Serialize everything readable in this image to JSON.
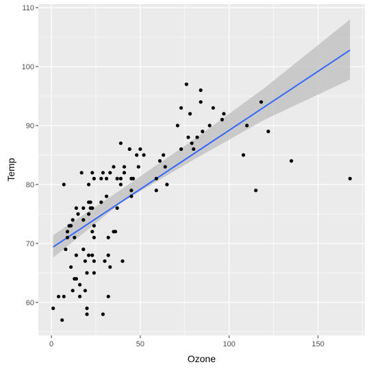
{
  "chart_data": {
    "type": "scatter",
    "title": "",
    "xlabel": "Ozone",
    "ylabel": "Temp",
    "xlim": [
      -7.35,
      176.35
    ],
    "ylim": [
      54.4,
      110.6
    ],
    "xticks": [
      0,
      50,
      100,
      150
    ],
    "yticks": [
      60,
      70,
      80,
      90,
      100,
      110
    ],
    "grid": true,
    "legend": "none",
    "colors": {
      "panel": "#ebebeb",
      "grid": "#ffffff",
      "points": "#000000",
      "fit_line": "#3366ff",
      "ribbon": "#bebebe"
    },
    "points": [
      [
        1,
        59
      ],
      [
        4,
        61
      ],
      [
        6,
        57
      ],
      [
        7,
        61
      ],
      [
        7,
        80
      ],
      [
        8,
        69
      ],
      [
        9,
        71
      ],
      [
        9,
        72
      ],
      [
        10,
        73
      ],
      [
        11,
        73
      ],
      [
        11,
        66
      ],
      [
        12,
        74
      ],
      [
        12,
        62
      ],
      [
        13,
        71
      ],
      [
        13,
        64
      ],
      [
        14,
        76
      ],
      [
        14,
        64
      ],
      [
        14,
        68
      ],
      [
        15,
        75
      ],
      [
        16,
        61
      ],
      [
        16,
        63
      ],
      [
        17,
        82
      ],
      [
        18,
        74
      ],
      [
        18,
        69
      ],
      [
        18,
        76
      ],
      [
        19,
        62
      ],
      [
        19,
        67
      ],
      [
        20,
        58
      ],
      [
        20,
        59
      ],
      [
        20,
        65
      ],
      [
        21,
        77
      ],
      [
        21,
        68
      ],
      [
        21,
        80
      ],
      [
        21,
        75
      ],
      [
        22,
        77
      ],
      [
        22,
        76
      ],
      [
        23,
        72
      ],
      [
        23,
        76
      ],
      [
        23,
        68
      ],
      [
        23,
        82
      ],
      [
        24,
        71
      ],
      [
        24,
        67
      ],
      [
        24,
        65
      ],
      [
        24,
        81
      ],
      [
        24,
        73
      ],
      [
        28,
        81
      ],
      [
        28,
        77
      ],
      [
        29,
        82
      ],
      [
        29,
        58
      ],
      [
        30,
        67
      ],
      [
        31,
        78
      ],
      [
        31,
        81
      ],
      [
        32,
        61
      ],
      [
        32,
        68
      ],
      [
        32,
        71
      ],
      [
        33,
        66
      ],
      [
        33,
        82
      ],
      [
        35,
        83
      ],
      [
        35,
        72
      ],
      [
        36,
        72
      ],
      [
        37,
        76
      ],
      [
        37,
        81
      ],
      [
        39,
        87
      ],
      [
        39,
        81
      ],
      [
        39,
        80
      ],
      [
        40,
        67
      ],
      [
        41,
        82
      ],
      [
        41,
        83
      ],
      [
        44,
        86
      ],
      [
        44,
        86
      ],
      [
        45,
        79
      ],
      [
        45,
        78
      ],
      [
        45,
        81
      ],
      [
        46,
        81
      ],
      [
        48,
        85
      ],
      [
        49,
        83
      ],
      [
        50,
        86
      ],
      [
        52,
        85
      ],
      [
        59,
        79
      ],
      [
        59,
        81
      ],
      [
        61,
        84
      ],
      [
        63,
        85
      ],
      [
        64,
        83
      ],
      [
        65,
        80
      ],
      [
        71,
        90
      ],
      [
        73,
        86
      ],
      [
        73,
        93
      ],
      [
        76,
        97
      ],
      [
        77,
        88
      ],
      [
        78,
        92
      ],
      [
        79,
        87
      ],
      [
        80,
        86
      ],
      [
        82,
        88
      ],
      [
        84,
        96
      ],
      [
        84,
        94
      ],
      [
        85,
        89
      ],
      [
        89,
        90
      ],
      [
        91,
        93
      ],
      [
        96,
        91
      ],
      [
        97,
        92
      ],
      [
        108,
        85
      ],
      [
        110,
        90
      ],
      [
        115,
        79
      ],
      [
        118,
        94
      ],
      [
        122,
        89
      ],
      [
        135,
        84
      ],
      [
        168,
        81
      ]
    ],
    "fit_line": {
      "x": [
        1,
        168
      ],
      "y": [
        69.4,
        102.8
      ]
    },
    "confidence_band": {
      "x": [
        1,
        40,
        80,
        120,
        168
      ],
      "lower": [
        67.6,
        77.1,
        84.2,
        91.0,
        97.8
      ],
      "upper": [
        71.4,
        79.3,
        87.6,
        96.4,
        108.0
      ]
    }
  }
}
